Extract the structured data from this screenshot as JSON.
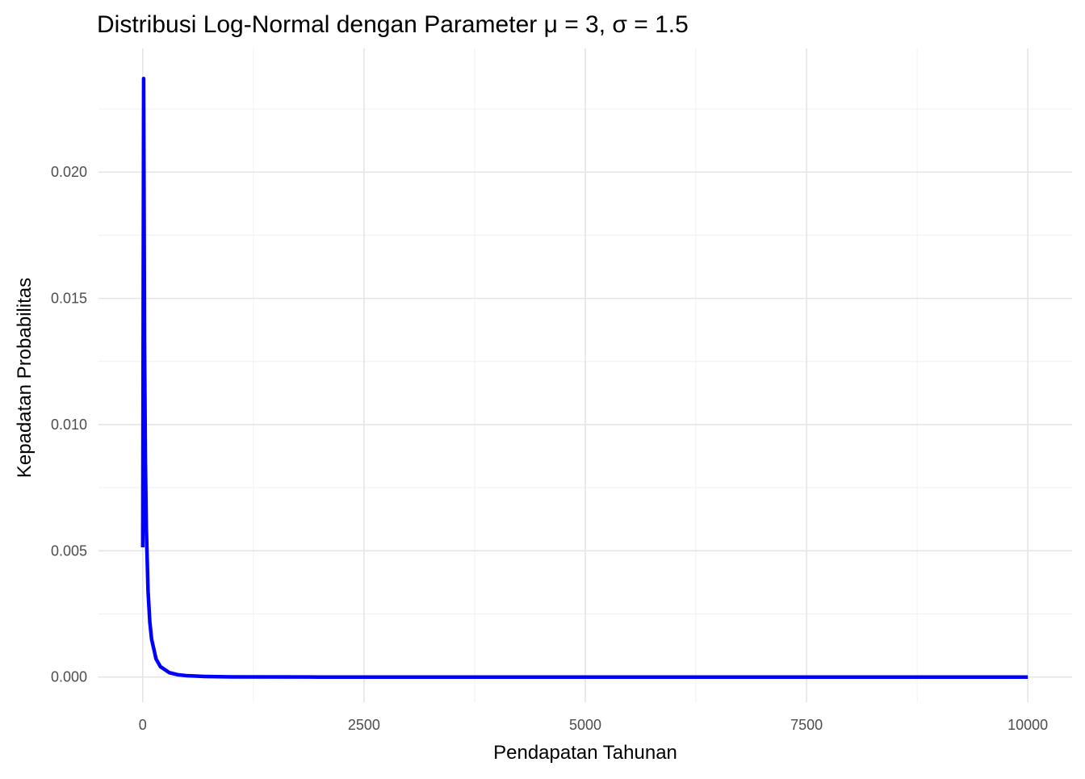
{
  "chart_data": {
    "type": "line",
    "title": "Distribusi Log-Normal dengan Parameter μ = 3, σ = 1.5",
    "x_label": "Pendapatan Tahunan",
    "y_label": "Kepadatan Probabilitas",
    "x": [
      0.1,
      10.1,
      20.1,
      30.1,
      40.1,
      60.1,
      80.1,
      100.1,
      150.1,
      200.1,
      300,
      400,
      500,
      700,
      1000,
      2000,
      5000,
      10000
    ],
    "series": [
      {
        "color": "#0000ff",
        "values": [
          0.00514,
          0.02371,
          0.01323,
          0.00852,
          0.00596,
          0.00339,
          0.00217,
          0.0015,
          0.000721,
          0.000411,
          0.000175,
          9.1e-05,
          5.35e-05,
          2.31e-05,
          8.9e-06,
          1.2e-06,
          0,
          0
        ]
      }
    ],
    "xlim": [
      -500,
      10500
    ],
    "ylim": [
      -0.001,
      0.0249
    ],
    "xticks": [
      0,
      2500,
      5000,
      7500,
      10000
    ],
    "yticks": [
      {
        "value": 0,
        "label": "0.000"
      },
      {
        "value": 0.005,
        "label": "0.005"
      },
      {
        "value": 0.01,
        "label": "0.010"
      },
      {
        "value": 0.015,
        "label": "0.015"
      },
      {
        "value": 0.02,
        "label": "0.020"
      }
    ],
    "x_minor_ticks": [
      1250,
      3750,
      6250,
      8750
    ],
    "y_minor_ticks": [
      0.0025,
      0.0075,
      0.0125,
      0.0175,
      0.0225
    ],
    "grid": true
  }
}
